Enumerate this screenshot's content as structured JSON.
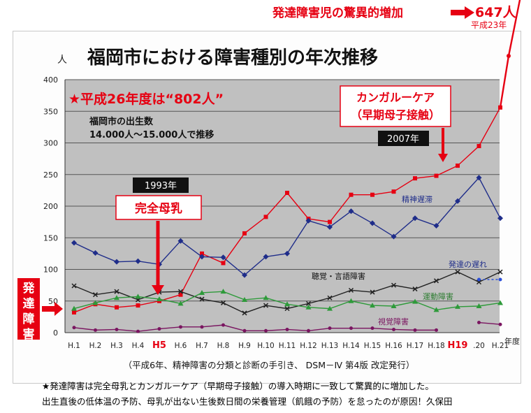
{
  "header": {
    "top_note": "発達障害児の驚異的増加",
    "top_value": "647人",
    "top_sub": "平成23年",
    "title": "福岡市における障害種別の年次推移",
    "y_unit": "人"
  },
  "annotations": {
    "heisei26": "★平成26年度は“802人”",
    "births_line1": "福岡市の出生数",
    "births_line2": "14.000人～15.000人で推移",
    "kangaroo_line1": "カンガルーケア",
    "kangaroo_line2": "（早期母子接触）",
    "year2007": "2007年",
    "year1993": "1993年",
    "breastfeed": "完全母乳",
    "side_label": "発達障害",
    "x_unit": "年度",
    "source": "（平成6年、精神障害の分類と診断の手引き、 DSM－Ⅳ 第4版 改定発行）"
  },
  "footer": {
    "line1": "★発達障害は完全母乳とカンガルーケア（早期母子接触）の導入時期に一致して驚異的に増加した。",
    "line2": "出生直後の低体温の予防、母乳が出ない生後数日間の栄養管理（飢餓の予防）を怠ったのが原因！久保田"
  },
  "chart_data": {
    "type": "line",
    "categories": [
      "H.1",
      "H.2",
      "H.3",
      "H.4",
      "H5",
      "H.6",
      "H.7",
      "H.8",
      "H.9",
      "H.10",
      "H.11",
      "H.12",
      "H.13",
      "H.14",
      "H.15",
      "H.16",
      "H.17",
      "H.18",
      "H19",
      ".20",
      "H.21"
    ],
    "highlight_categories": [
      "H5",
      "H19"
    ],
    "ylim": [
      0,
      400
    ],
    "yticks": [
      0,
      50,
      100,
      150,
      200,
      250,
      300,
      350,
      400
    ],
    "series": [
      {
        "name": "発達の遅れ",
        "color": "#e60012",
        "values": [
          32,
          45,
          40,
          43,
          50,
          60,
          125,
          110,
          157,
          183,
          221,
          180,
          175,
          218,
          218,
          223,
          244,
          248,
          264,
          295,
          356
        ]
      },
      {
        "name": "精神遅滞",
        "color": "#1f2d8a",
        "values": [
          142,
          126,
          112,
          113,
          108,
          145,
          120,
          119,
          91,
          120,
          125,
          177,
          167,
          192,
          173,
          152,
          181,
          169,
          208,
          245,
          181
        ]
      },
      {
        "name": "聴覚・言語障害",
        "color": "#222222",
        "values": [
          74,
          60,
          65,
          52,
          64,
          65,
          53,
          47,
          31,
          43,
          38,
          46,
          55,
          67,
          64,
          75,
          69,
          82,
          96,
          80,
          96
        ]
      },
      {
        "name": "運動障害",
        "color": "#2e9a3a",
        "values": [
          38,
          47,
          55,
          57,
          53,
          46,
          63,
          65,
          52,
          55,
          45,
          40,
          38,
          50,
          43,
          42,
          49,
          36,
          41,
          42,
          47
        ]
      },
      {
        "name": "視覚障害",
        "color": "#7a1560",
        "values": [
          8,
          4,
          5,
          2,
          6,
          9,
          9,
          12,
          3,
          3,
          5,
          3,
          7,
          7,
          7,
          5,
          4,
          4,
          null,
          16,
          13
        ]
      },
      {
        "name": "発達の遅れ_dotted",
        "color": "#2b4fd8",
        "values": [
          null,
          null,
          null,
          null,
          null,
          null,
          null,
          null,
          null,
          null,
          null,
          null,
          null,
          null,
          null,
          null,
          null,
          null,
          null,
          84,
          84
        ]
      }
    ],
    "extension": {
      "from_category": "H.21",
      "from_value": 356,
      "to_label": "647人"
    }
  }
}
